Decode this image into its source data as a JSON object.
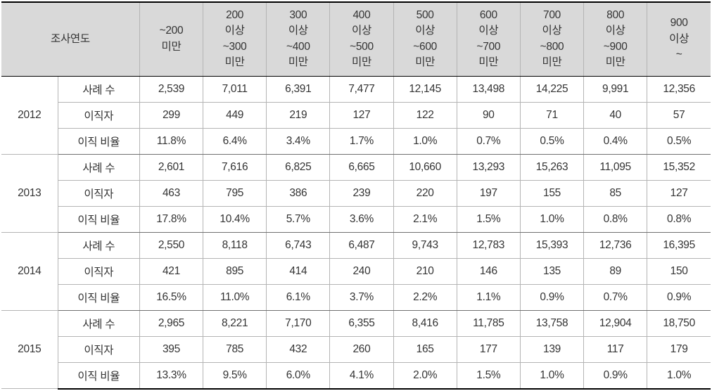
{
  "table": {
    "type": "table",
    "background_color": "#ffffff",
    "header_background": "#d9d9d9",
    "border_color_light": "#b4b4b4",
    "border_color_dark": "#000000",
    "font_size": 15.5,
    "text_color": "#333333",
    "header": {
      "year_label": "조사연도",
      "columns": [
        "~200\n미만",
        "200\n이상\n~300\n미만",
        "300\n이상\n~400\n미만",
        "400\n이상\n~500\n미만",
        "500\n이상\n~600\n미만",
        "600\n이상\n~700\n미만",
        "700\n이상\n~800\n미만",
        "800\n이상\n~900\n미만",
        "900\n이상\n~"
      ]
    },
    "metric_labels": [
      "사례 수",
      "이직자",
      "이직 비율"
    ],
    "years": [
      "2012",
      "2013",
      "2014",
      "2015"
    ],
    "data": {
      "2012": {
        "cases": [
          "2,539",
          "7,011",
          "6,391",
          "7,477",
          "12,145",
          "13,498",
          "14,225",
          "9,991",
          "12,356"
        ],
        "leavers": [
          "299",
          "449",
          "219",
          "127",
          "122",
          "90",
          "71",
          "40",
          "57"
        ],
        "ratio": [
          "11.8%",
          "6.4%",
          "3.4%",
          "1.7%",
          "1.0%",
          "0.7%",
          "0.5%",
          "0.4%",
          "0.5%"
        ]
      },
      "2013": {
        "cases": [
          "2,601",
          "7,616",
          "6,825",
          "6,665",
          "10,660",
          "13,293",
          "15,263",
          "11,095",
          "15,352"
        ],
        "leavers": [
          "463",
          "795",
          "386",
          "239",
          "220",
          "197",
          "155",
          "85",
          "127"
        ],
        "ratio": [
          "17.8%",
          "10.4%",
          "5.7%",
          "3.6%",
          "2.1%",
          "1.5%",
          "1.0%",
          "0.8%",
          "0.8%"
        ]
      },
      "2014": {
        "cases": [
          "2,550",
          "8,118",
          "6,743",
          "6,487",
          "9,743",
          "12,783",
          "15,393",
          "12,736",
          "16,395"
        ],
        "leavers": [
          "421",
          "895",
          "414",
          "240",
          "210",
          "146",
          "135",
          "89",
          "150"
        ],
        "ratio": [
          "16.5%",
          "11.0%",
          "6.1%",
          "3.7%",
          "2.2%",
          "1.1%",
          "0.9%",
          "0.7%",
          "0.9%"
        ]
      },
      "2015": {
        "cases": [
          "2,965",
          "8,221",
          "7,170",
          "6,355",
          "8,416",
          "11,785",
          "13,758",
          "12,904",
          "18,750"
        ],
        "leavers": [
          "395",
          "785",
          "432",
          "260",
          "165",
          "177",
          "139",
          "117",
          "179"
        ],
        "ratio": [
          "13.3%",
          "9.5%",
          "6.0%",
          "4.1%",
          "2.0%",
          "1.5%",
          "1.0%",
          "0.9%",
          "1.0%"
        ]
      }
    }
  }
}
